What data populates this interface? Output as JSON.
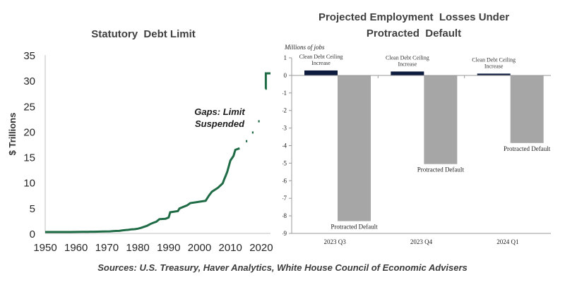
{
  "source": "Sources: U.S. Treasury, Haver Analytics, White House Council of Economic Advisers",
  "chart_data": [
    {
      "type": "line",
      "title": "Statutory  Debt Limit",
      "ylabel": "$ Trillions",
      "xlabel": "",
      "xlim": [
        1950,
        2023
      ],
      "ylim": [
        0,
        35
      ],
      "xticks": [
        "1950",
        "1960",
        "1970",
        "1980",
        "1990",
        "2000",
        "2010",
        "2020"
      ],
      "yticks": [
        "0",
        "5",
        "10",
        "15",
        "20",
        "25",
        "30",
        "35"
      ],
      "annotation": [
        "Gaps: Limit",
        "Suspended"
      ],
      "color": "#1e6b45",
      "series": [
        {
          "segments": [
            [
              [
                1950,
                0.28
              ],
              [
                1954,
                0.28
              ],
              [
                1954,
                0.28
              ],
              [
                1958,
                0.28
              ],
              [
                1958,
                0.28
              ],
              [
                1960,
                0.29
              ],
              [
                1960,
                0.29
              ],
              [
                1962,
                0.3
              ],
              [
                1962,
                0.3
              ],
              [
                1964,
                0.32
              ],
              [
                1964,
                0.32
              ],
              [
                1966,
                0.33
              ],
              [
                1966,
                0.33
              ],
              [
                1967,
                0.35
              ],
              [
                1967,
                0.35
              ],
              [
                1969,
                0.37
              ],
              [
                1969,
                0.37
              ],
              [
                1971,
                0.4
              ],
              [
                1971,
                0.4
              ],
              [
                1972,
                0.45
              ],
              [
                1972,
                0.45
              ],
              [
                1973,
                0.48
              ],
              [
                1973,
                0.48
              ],
              [
                1974,
                0.5
              ],
              [
                1974,
                0.5
              ],
              [
                1975,
                0.58
              ],
              [
                1975,
                0.58
              ],
              [
                1976,
                0.65
              ],
              [
                1976,
                0.65
              ],
              [
                1977,
                0.7
              ],
              [
                1977,
                0.7
              ],
              [
                1978,
                0.8
              ],
              [
                1978,
                0.8
              ],
              [
                1979,
                0.83
              ],
              [
                1979,
                0.83
              ],
              [
                1980,
                0.93
              ],
              [
                1980,
                0.93
              ],
              [
                1981,
                1.08
              ],
              [
                1981,
                1.08
              ],
              [
                1982,
                1.29
              ],
              [
                1982,
                1.29
              ],
              [
                1983,
                1.49
              ],
              [
                1983,
                1.49
              ],
              [
                1984,
                1.82
              ],
              [
                1984,
                1.82
              ],
              [
                1985,
                2.08
              ],
              [
                1985,
                2.08
              ],
              [
                1986,
                2.3
              ],
              [
                1986,
                2.3
              ],
              [
                1987,
                2.8
              ],
              [
                1987,
                2.8
              ],
              [
                1989,
                2.87
              ],
              [
                1989,
                2.87
              ],
              [
                1990,
                3.12
              ],
              [
                1990,
                3.12
              ],
              [
                1990.5,
                4.15
              ],
              [
                1990.5,
                4.15
              ],
              [
                1993,
                4.37
              ],
              [
                1993,
                4.37
              ],
              [
                1993.5,
                4.9
              ],
              [
                1993.5,
                4.9
              ],
              [
                1996,
                5.5
              ],
              [
                1996,
                5.5
              ],
              [
                1997,
                5.95
              ],
              [
                1997,
                5.95
              ],
              [
                2002,
                6.4
              ],
              [
                2002,
                6.4
              ],
              [
                2003,
                7.38
              ],
              [
                2003,
                7.38
              ],
              [
                2004,
                8.18
              ],
              [
                2004,
                8.18
              ],
              [
                2006,
                8.97
              ],
              [
                2006,
                8.97
              ],
              [
                2007.5,
                9.82
              ],
              [
                2007.5,
                9.82
              ],
              [
                2008,
                10.62
              ],
              [
                2008,
                10.62
              ],
              [
                2008.5,
                11.32
              ],
              [
                2008.5,
                11.32
              ],
              [
                2009,
                12.1
              ],
              [
                2009,
                12.1
              ],
              [
                2010,
                14.29
              ],
              [
                2010,
                14.29
              ],
              [
                2011,
                15.19
              ],
              [
                2011,
                15.19
              ],
              [
                2011.6,
                16.39
              ],
              [
                2011.6,
                16.39
              ],
              [
                2013,
                16.7
              ]
            ],
            [
              [
                2015,
                18.1
              ],
              [
                2015.5,
                18.1
              ]
            ],
            [
              [
                2017,
                19.8
              ],
              [
                2017.5,
                19.8
              ]
            ],
            [
              [
                2019,
                22.0
              ],
              [
                2019.5,
                22.0
              ]
            ],
            [
              [
                2021.3,
                28.4
              ],
              [
                2021.5,
                28.4
              ],
              [
                2021.5,
                31.4
              ],
              [
                2023,
                31.4
              ]
            ]
          ]
        }
      ]
    },
    {
      "type": "bar",
      "title": [
        "Projected Employment  Losses Under",
        "Protracted  Default"
      ],
      "ylabel": "Millions of jobs",
      "xlabel": "",
      "ylim": [
        -9,
        1
      ],
      "yticks": [
        "1",
        "0",
        "-1",
        "-2",
        "-3",
        "-4",
        "-5",
        "-6",
        "-7",
        "-8",
        "-9"
      ],
      "categories": [
        "2023 Q3",
        "2023 Q4",
        "2024 Q1"
      ],
      "series": [
        {
          "name": "Clean Debt Ceiling Increase",
          "color": "#0d1b3e",
          "values": [
            0.28,
            0.22,
            0.1
          ],
          "labels": [
            [
              "Clean Debt Ceiling",
              "Increase"
            ],
            [
              "Clean Debt Ceiling",
              "Increase"
            ],
            [
              "Clean Debt Ceiling",
              "Increase"
            ]
          ]
        },
        {
          "name": "Protracted Default",
          "color": "#a6a6a6",
          "values": [
            -8.3,
            -5.05,
            -3.85
          ],
          "labels": [
            "Protracted Default",
            "Protracted Default",
            "Protracted Default"
          ]
        }
      ]
    }
  ]
}
